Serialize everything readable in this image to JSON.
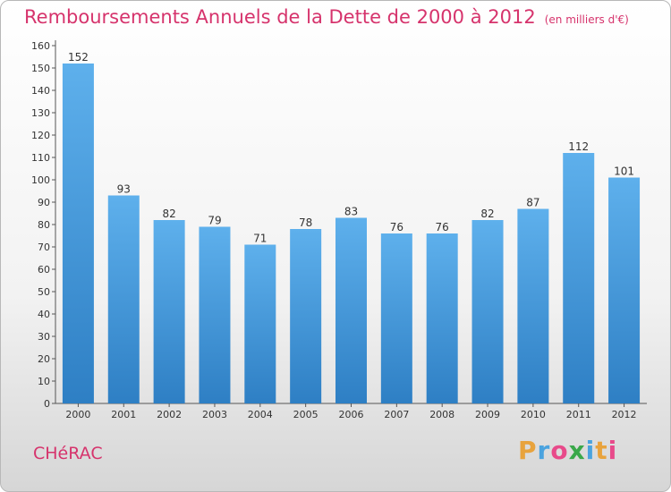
{
  "chart_data": {
    "type": "bar",
    "title": "Remboursements Annuels de la Dette de 2000 à 2012",
    "unit": "(en milliers d'€)",
    "categories": [
      "2000",
      "2001",
      "2002",
      "2003",
      "2004",
      "2005",
      "2006",
      "2007",
      "2008",
      "2009",
      "2010",
      "2011",
      "2012"
    ],
    "values": [
      152,
      93,
      82,
      79,
      71,
      78,
      83,
      76,
      76,
      82,
      87,
      112,
      101
    ],
    "ylim": [
      0,
      160
    ],
    "yticks": [
      0,
      10,
      20,
      30,
      40,
      50,
      60,
      70,
      80,
      90,
      100,
      110,
      120,
      130,
      140,
      150,
      160
    ],
    "grid": false,
    "bar_color": "#4a9ee0"
  },
  "commune": "CHéRAC",
  "logo": {
    "letters": [
      "P",
      "r",
      "o",
      "x",
      "i",
      "t",
      "i"
    ],
    "colors": [
      "#e8a33d",
      "#4aa3df",
      "#e84a8a",
      "#3aa84a",
      "#4aa3df",
      "#e8a33d",
      "#e84a8a"
    ]
  },
  "colors": {
    "title": "#d6336c",
    "axis": "#555555"
  }
}
